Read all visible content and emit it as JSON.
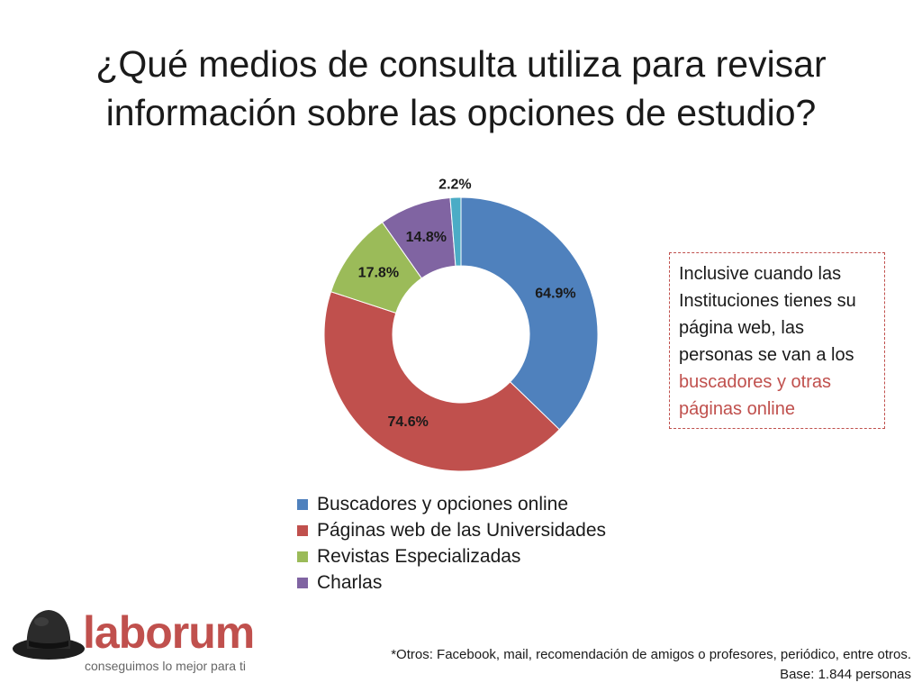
{
  "slide": {
    "title_line1": "¿Qué medios de consulta utiliza para revisar",
    "title_line2": "información sobre las opciones de estudio?"
  },
  "callout": {
    "text_plain": "Inclusive cuando las Instituciones tienes su página web, las personas se van a los",
    "text_highlight": "buscadores y otras páginas online"
  },
  "logo": {
    "wordmark": "laborum",
    "tagline": "conseguimos lo mejor para ti"
  },
  "footnote": {
    "line1": "*Otros: Facebook, mail, recomendación de amigos o profesores, periódico, entre otros.",
    "line2": "Base: 1.844 personas"
  },
  "colors": {
    "accent": "#c0504d",
    "blue": "#4f81bd",
    "red": "#c0504d",
    "green": "#9bbb59",
    "purple": "#8064a2",
    "cyan": "#4bacc6"
  },
  "chart_data": {
    "type": "pie",
    "variant": "donut",
    "title": "¿Qué medios de consulta utiliza para revisar información sobre las opciones de estudio?",
    "categories": [
      "Buscadores y opciones online",
      "Páginas web de las Universidades",
      "Revistas Especializadas",
      "Charlas",
      "Otros*"
    ],
    "values": [
      64.9,
      74.6,
      17.8,
      14.8,
      2.2
    ],
    "labels": [
      "64.9%",
      "74.6%",
      "17.8%",
      "14.8%",
      "2.2%"
    ],
    "colors": [
      "#4f81bd",
      "#c0504d",
      "#9bbb59",
      "#8064a2",
      "#4bacc6"
    ],
    "legend": [
      "Buscadores y opciones online",
      "Páginas web de las Universidades",
      "Revistas Especializadas",
      "Charlas"
    ],
    "legend_position": "bottom"
  }
}
